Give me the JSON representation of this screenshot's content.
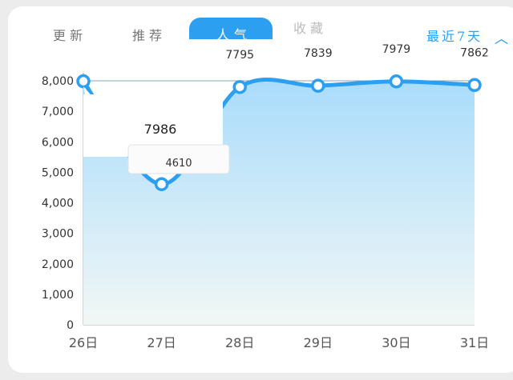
{
  "tabs": [
    {
      "label": "更新"
    },
    {
      "label": "推荐"
    },
    {
      "label": "人气"
    },
    {
      "label": "收藏"
    }
  ],
  "range_label": "最近7天",
  "tooltip": {
    "value": "7986"
  },
  "popup": {
    "value": "4610"
  },
  "colors": {
    "accent": "#2c9ff0",
    "fill_top": "#a9dcfb",
    "fill_bottom": "#f2f7f6"
  },
  "chart_data": {
    "type": "area",
    "categories": [
      "26日",
      "27日",
      "28日",
      "29日",
      "30日",
      "31日"
    ],
    "values": [
      7986,
      4610,
      7795,
      7839,
      7979,
      7862
    ],
    "data_labels": [
      "",
      "",
      "7795",
      "7839",
      "7979",
      "7862"
    ],
    "y_ticks": [
      "0",
      "1,000",
      "2,000",
      "3,000",
      "4,000",
      "5,000",
      "6,000",
      "7,000",
      "8,000"
    ],
    "ylim": [
      0,
      8000
    ],
    "grid": true
  }
}
